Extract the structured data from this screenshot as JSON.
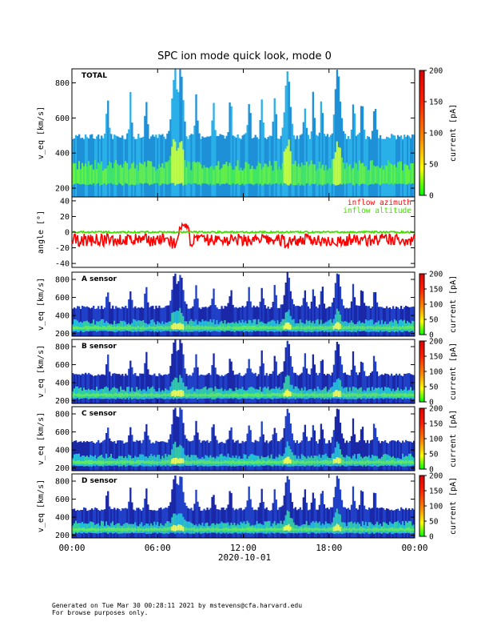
{
  "title": "SPC ion mode quick look, mode 0",
  "footer": {
    "generated": "Generated on Tue Mar 30 00:28:11 2021 by mstevens@cfa.harvard.edu",
    "note": "For browse purposes only."
  },
  "chart_data": {
    "time_axis": {
      "tick_labels": [
        "00:00",
        "06:00",
        "12:00",
        "18:00",
        "00:00"
      ],
      "tick_hours": [
        0,
        6,
        12,
        18,
        24
      ],
      "date_label": "2020-10-01",
      "range_hours": [
        0,
        24
      ]
    },
    "features": {
      "burst_hours": [
        7.2,
        7.6,
        15.1,
        18.6
      ],
      "spike_hours": [
        2.5,
        4.1,
        5.2,
        8.7,
        9.9,
        11.1,
        12.4,
        13.3,
        14.2,
        16.3,
        16.9,
        17.5,
        19.7,
        20.3,
        21.2
      ],
      "gap_hours": [
        7.35,
        18.45
      ]
    },
    "panels": [
      {
        "type": "heatmap",
        "label": "TOTAL",
        "ylabel": "v_eq [km/s]",
        "ylim": [
          150,
          880
        ],
        "yticks": [
          200,
          400,
          600,
          800
        ],
        "colorbar": {
          "label": "current [pA]",
          "range": [
            0,
            200
          ],
          "ticks": [
            0,
            50,
            100,
            150,
            200
          ]
        }
      },
      {
        "type": "line",
        "ylabel": "angle [°]",
        "ylim": [
          -45,
          45
        ],
        "yticks": [
          -40,
          -20,
          0,
          20,
          40
        ],
        "series": [
          {
            "name": "inflow azimuth",
            "color": "#ff0000",
            "typical_value": -10
          },
          {
            "name": "inflow altitude",
            "color": "#44dd00",
            "typical_value": 0
          }
        ]
      },
      {
        "type": "heatmap",
        "label": "A sensor",
        "ylabel": "v_eq [km/s]",
        "ylim": [
          170,
          880
        ],
        "yticks": [
          200,
          400,
          600,
          800
        ],
        "colorbar": {
          "label": "current [pA]",
          "range": [
            0,
            200
          ],
          "ticks": [
            0,
            50,
            100,
            150,
            200
          ]
        }
      },
      {
        "type": "heatmap",
        "label": "B sensor",
        "ylabel": "v_eq [km/s]",
        "ylim": [
          170,
          880
        ],
        "yticks": [
          200,
          400,
          600,
          800
        ],
        "colorbar": {
          "label": "current [pA]",
          "range": [
            0,
            200
          ],
          "ticks": [
            0,
            50,
            100,
            150,
            200
          ]
        }
      },
      {
        "type": "heatmap",
        "label": "C sensor",
        "ylabel": "v_eq [km/s]",
        "ylim": [
          170,
          880
        ],
        "yticks": [
          200,
          400,
          600,
          800
        ],
        "colorbar": {
          "label": "current [pA]",
          "range": [
            0,
            200
          ],
          "ticks": [
            0,
            50,
            100,
            150,
            200
          ]
        }
      },
      {
        "type": "heatmap",
        "label": "D sensor",
        "ylabel": "v_eq [km/s]",
        "ylim": [
          170,
          880
        ],
        "yticks": [
          200,
          400,
          600,
          800
        ],
        "colorbar": {
          "label": "current [pA]",
          "range": [
            0,
            200
          ],
          "ticks": [
            0,
            50,
            100,
            150,
            200
          ]
        }
      }
    ]
  }
}
